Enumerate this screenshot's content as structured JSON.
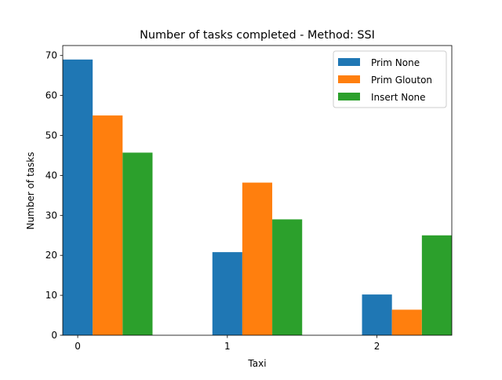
{
  "chart_data": {
    "type": "bar",
    "title": "Number of tasks completed - Method: SSI",
    "xlabel": "Taxi",
    "ylabel": "Number of tasks",
    "categories": [
      "0",
      "1",
      "2"
    ],
    "series": [
      {
        "name": "Prim None",
        "values": [
          69,
          20.8,
          10.2
        ],
        "color": "#1f77b4"
      },
      {
        "name": "Prim Glouton",
        "values": [
          55,
          38.2,
          6.4
        ],
        "color": "#ff7f0e"
      },
      {
        "name": "Insert None",
        "values": [
          45.7,
          29,
          25
        ],
        "color": "#2ca02c"
      }
    ],
    "ylim": [
      0,
      72.5
    ],
    "yticks": [
      0,
      10,
      20,
      30,
      40,
      50,
      60,
      70
    ],
    "grid": false,
    "legend_position": "top-right"
  }
}
